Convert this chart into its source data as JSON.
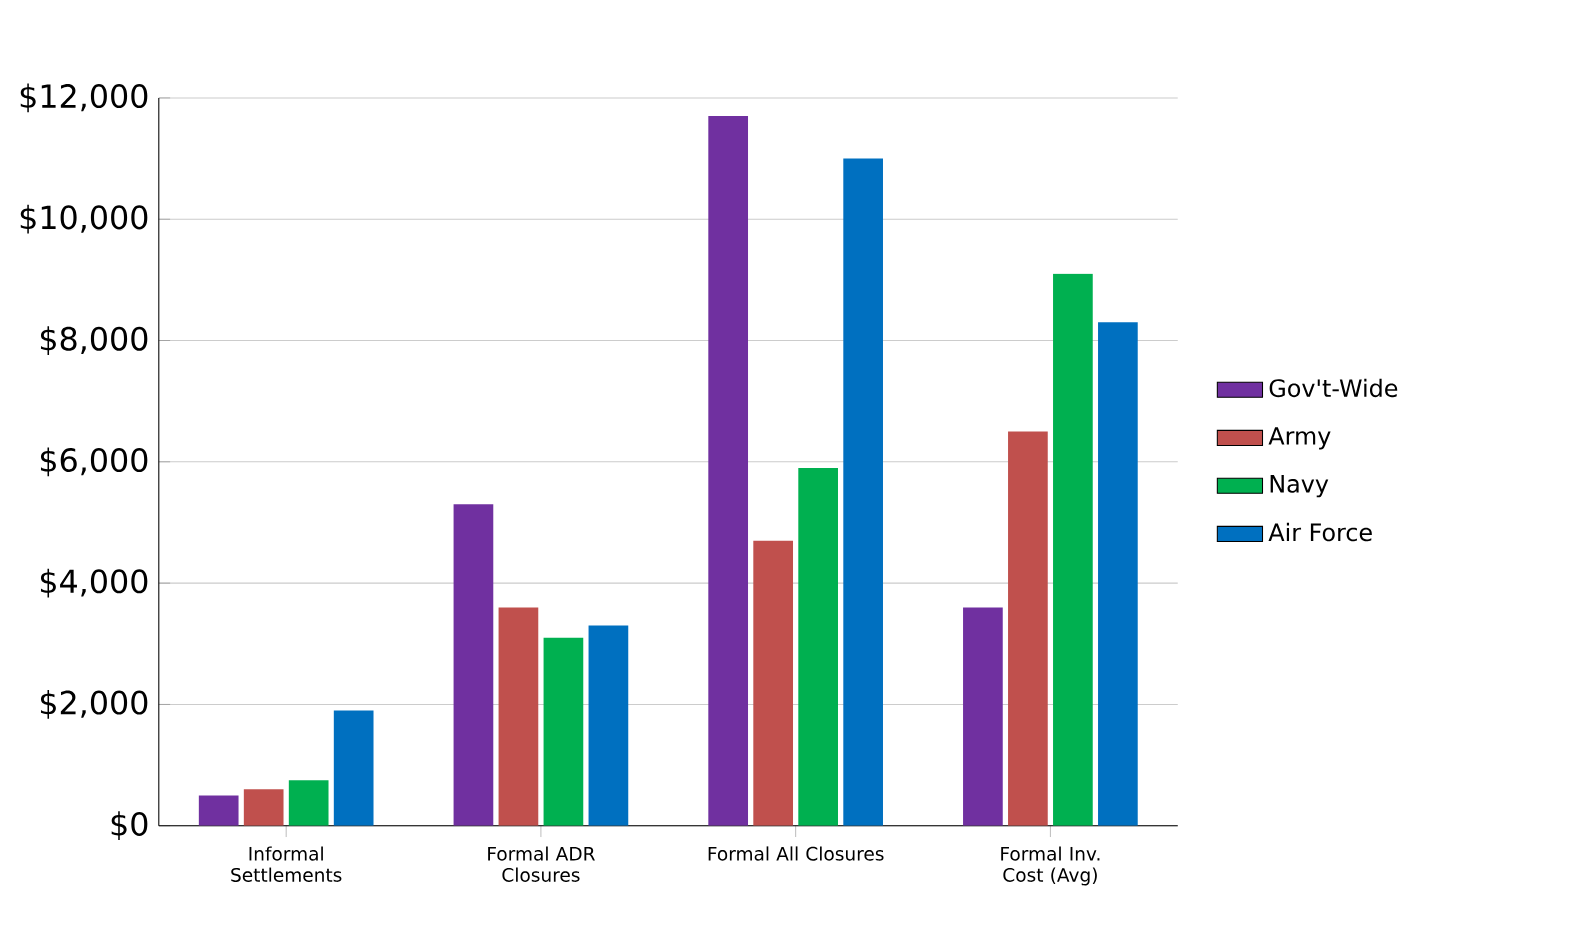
{
  "chart_data": {
    "type": "bar",
    "categories": [
      "Informal Settlements",
      "Formal ADR Closures",
      "Formal All Closures",
      "Formal Inv. Cost (Avg)"
    ],
    "series": [
      {
        "name": "Gov't-Wide",
        "color": "#7030a0",
        "values": [
          500,
          5300,
          11700,
          3600
        ]
      },
      {
        "name": "Army",
        "color": "#c0504d",
        "values": [
          600,
          3600,
          4700,
          6500
        ]
      },
      {
        "name": "Navy",
        "color": "#00b050",
        "values": [
          750,
          3100,
          5900,
          9100
        ]
      },
      {
        "name": "Air Force",
        "color": "#0070c0",
        "values": [
          1900,
          3300,
          11000,
          8300
        ]
      }
    ],
    "ylim": [
      0,
      12000
    ],
    "yticks": [
      {
        "value": 0,
        "label": "$0"
      },
      {
        "value": 2000,
        "label": "$2,000"
      },
      {
        "value": 4000,
        "label": "$4,000"
      },
      {
        "value": 6000,
        "label": "$6,000"
      },
      {
        "value": 8000,
        "label": "$8,000"
      },
      {
        "value": 10000,
        "label": "$10,000"
      },
      {
        "value": 12000,
        "label": "$12,000"
      }
    ],
    "grid": "y",
    "legend": "right"
  }
}
